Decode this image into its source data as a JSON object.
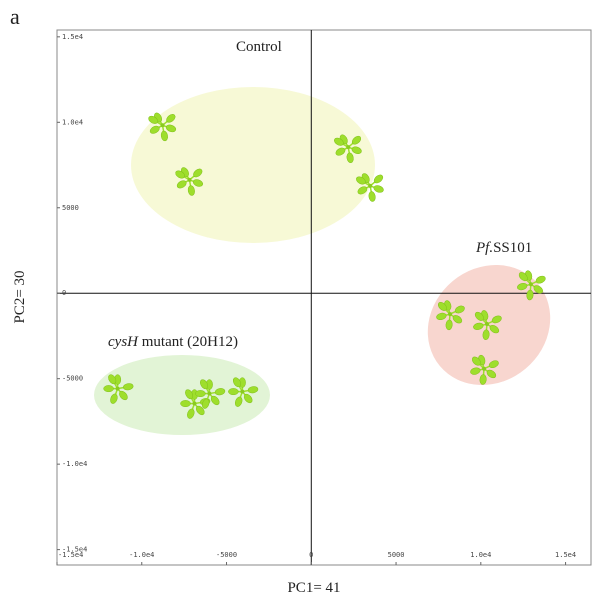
{
  "panel_label": "a",
  "chart_data": {
    "type": "scatter",
    "xlabel": "PC1= 41",
    "ylabel": "PC2= 30",
    "xlim": [
      -15000,
      16500
    ],
    "ylim": [
      -15900,
      15400
    ],
    "xticks": [
      {
        "value": -15000,
        "label": "-1.5e4"
      },
      {
        "value": -10000,
        "label": "-1.0e4"
      },
      -5000,
      0,
      5000,
      {
        "value": 10000,
        "label": "1.0e4"
      },
      {
        "value": 15000,
        "label": "1.5e4"
      }
    ],
    "yticks": [
      {
        "value": 15000,
        "label": "1.5e4"
      },
      {
        "value": 10000,
        "label": "1.0e4"
      },
      5000,
      0,
      -5000,
      {
        "value": -10000,
        "label": "-1.0e4"
      },
      {
        "value": -15000,
        "label": "-1.5e4"
      }
    ],
    "marker_color": "#9ede2c",
    "series": [
      {
        "label_parts": [
          {
            "text": "Control",
            "italic": false
          }
        ],
        "color": "#f7f9d6",
        "x": [
          -8775,
          -7185,
          2180,
          3475
        ],
        "y": [
          9825,
          6630,
          8545,
          6280
        ]
      },
      {
        "label_parts": [
          {
            "text": "Pf.",
            "italic": true
          },
          {
            "text": "SS101",
            "italic": false
          }
        ],
        "color": "#f8d6cf",
        "x": [
          12955,
          8185,
          10365,
          10190
        ],
        "y": [
          525,
          -1220,
          -1800,
          -4420
        ]
      },
      {
        "label_parts": [
          {
            "text": "cysH",
            "italic": true
          },
          {
            "text": " mutant (20H12)",
            "italic": false
          }
        ],
        "color": "#e2f4d6",
        "x": [
          -11425,
          -6890,
          -6010,
          -4065
        ],
        "y": [
          -5580,
          -6455,
          -5870,
          -5755
        ]
      }
    ]
  }
}
